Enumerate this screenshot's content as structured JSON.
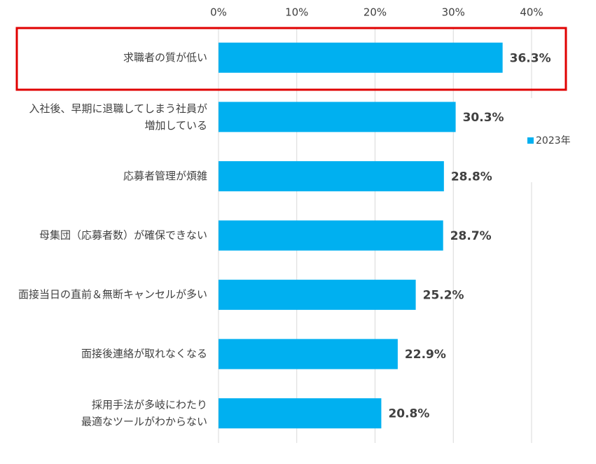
{
  "chart_data": {
    "type": "bar",
    "orientation": "horizontal",
    "categories": [
      "求職者の質が低い",
      "入社後、早期に退職してしまう社員が\n増加している",
      "応募者管理が煩雑",
      "母集団（応募者数）が確保できない",
      "面接当日の直前＆無断キャンセルが多い",
      "面接後連絡が取れなくなる",
      "採用手法が多岐にわたり\n最適なツールがわからない"
    ],
    "series": [
      {
        "name": "2023年",
        "color": "#00b0f0",
        "values": [
          36.3,
          30.3,
          28.8,
          28.7,
          25.2,
          22.9,
          20.8
        ],
        "value_labels": [
          "36.3%",
          "30.3%",
          "28.8%",
          "28.7%",
          "25.2%",
          "22.9%",
          "20.8%"
        ]
      }
    ],
    "xlim": [
      0,
      40
    ],
    "xticks": [
      {
        "value": 0,
        "label": "0%"
      },
      {
        "value": 10,
        "label": "10%"
      },
      {
        "value": 20,
        "label": "20%"
      },
      {
        "value": 30,
        "label": "30%"
      },
      {
        "value": 40,
        "label": "40%"
      }
    ],
    "grid": true,
    "legend": "right"
  }
}
